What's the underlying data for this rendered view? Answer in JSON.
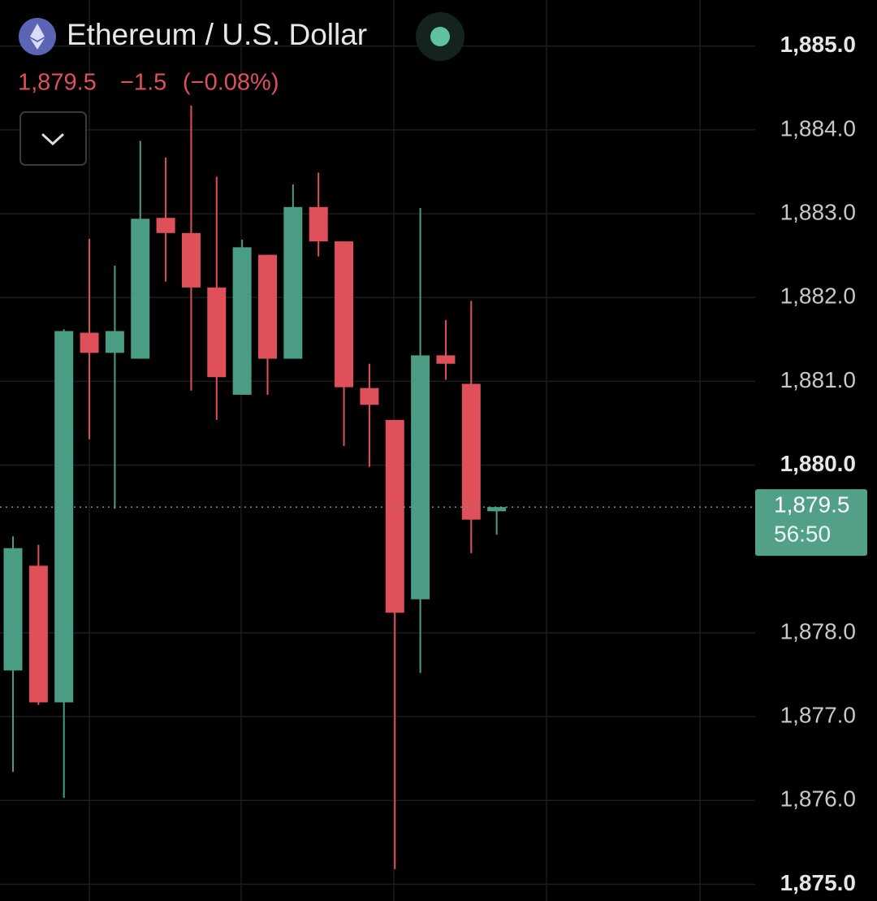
{
  "chart_data": {
    "type": "candlestick",
    "title": "Ethereum / U.S. Dollar",
    "price": "1,879.5",
    "change": "−1.5",
    "change_pct": "(−0.08%)",
    "up_color": "#4a9c84",
    "down_color": "#e0505a",
    "open": [
      1877.55,
      1878.8,
      1877.17,
      1881.58,
      1881.34,
      1881.27,
      1882.95,
      1882.77,
      1882.12,
      1880.84,
      1882.51,
      1881.27,
      1883.08,
      1882.67,
      1880.92,
      1880.54,
      1878.4,
      1881.31,
      1880.97,
      1879.45
    ],
    "high": [
      1879.15,
      1879.05,
      1881.62,
      1882.7,
      1882.38,
      1883.87,
      1883.67,
      1884.29,
      1883.44,
      1882.69,
      1882.51,
      1883.35,
      1883.49,
      1882.67,
      1881.21,
      1880.54,
      1883.07,
      1881.73,
      1881.96,
      1879.5
    ],
    "low": [
      1876.34,
      1877.14,
      1876.03,
      1880.31,
      1879.48,
      1881.27,
      1882.19,
      1880.89,
      1880.54,
      1880.84,
      1880.84,
      1881.27,
      1882.49,
      1880.23,
      1879.98,
      1875.18,
      1877.52,
      1881.02,
      1878.95,
      1879.17
    ],
    "close": [
      1879.01,
      1877.17,
      1881.6,
      1881.34,
      1881.6,
      1882.94,
      1882.77,
      1882.12,
      1881.05,
      1882.6,
      1881.27,
      1883.08,
      1882.67,
      1880.93,
      1880.72,
      1878.24,
      1881.31,
      1881.21,
      1879.35,
      1879.5
    ],
    "ylim": [
      1874.8,
      1885.55
    ],
    "yticks": [
      {
        "value": 1885,
        "label": "1,885.0"
      },
      {
        "value": 1884,
        "label": "1,884.0"
      },
      {
        "value": 1883,
        "label": "1,883.0"
      },
      {
        "value": 1882,
        "label": "1,882.0"
      },
      {
        "value": 1881,
        "label": "1,881.0"
      },
      {
        "value": 1880,
        "label": "1,880.0"
      },
      {
        "value": 1878,
        "label": "1,878.0"
      },
      {
        "value": 1877,
        "label": "1,877.0"
      },
      {
        "value": 1876,
        "label": "1,876.0"
      },
      {
        "value": 1875,
        "label": "1,875.0"
      }
    ],
    "grid": true,
    "last_price": {
      "value": 1879.5,
      "label": "1,879.5"
    },
    "countdown": "56:50"
  }
}
